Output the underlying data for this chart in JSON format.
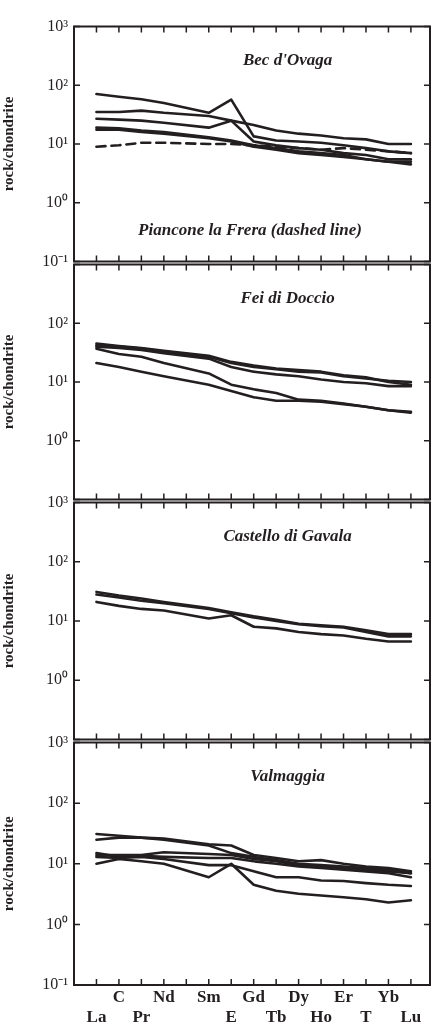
{
  "chart_data": [
    {
      "type": "line",
      "title": "Bec d'Ovaga",
      "ylabel": "rock/chondrite",
      "annotations": [
        "Piancone la Frera (dashed line)"
      ],
      "log": true,
      "tick_labels": "y",
      "ylim": [
        0.1,
        1000
      ],
      "yticks": [
        {
          "value": 0.1,
          "label": "10⁻¹"
        },
        {
          "value": 1,
          "label": "10⁰"
        },
        {
          "value": 10,
          "label": "10¹"
        },
        {
          "value": 100,
          "label": "10²"
        },
        {
          "value": 1000,
          "label": "10³"
        }
      ],
      "categories": [
        null,
        null,
        null,
        null,
        null,
        null,
        null,
        null,
        null,
        null,
        null,
        null,
        null,
        null,
        null
      ],
      "series": [
        {
          "color": "#231f20",
          "values": [
            71,
            64,
            58,
            50,
            null,
            34,
            57,
            13.5,
            11.5,
            11,
            10.5,
            9.5,
            8.5,
            7.5,
            7
          ]
        },
        {
          "color": "#231f20",
          "values": [
            35,
            35,
            37,
            34,
            null,
            30,
            25,
            21,
            17,
            15,
            14,
            12.5,
            12,
            10,
            10
          ]
        },
        {
          "color": "#231f20",
          "values": [
            27,
            26,
            25,
            23,
            null,
            19,
            25,
            11,
            9.5,
            8.5,
            8,
            7,
            6.5,
            5.5,
            5.5
          ]
        },
        {
          "color": "#231f20",
          "values": [
            19,
            18.5,
            17,
            16,
            null,
            13,
            11.5,
            9.5,
            8.5,
            7.5,
            7,
            6.5,
            5.5,
            5,
            4.5
          ]
        },
        {
          "color": "#231f20",
          "values": [
            17.5,
            17.5,
            16,
            15,
            null,
            12.5,
            11,
            9,
            8,
            7,
            6.5,
            6,
            5.5,
            5,
            5
          ]
        },
        {
          "color": "#231f20",
          "line_style": "dashed",
          "values": [
            9,
            9.5,
            10.5,
            10.5,
            null,
            10,
            10,
            9.5,
            9,
            8.5,
            8,
            8.5,
            8,
            7.5,
            7
          ]
        }
      ]
    },
    {
      "type": "line",
      "title": "Fei di Doccio",
      "ylabel": "rock/chondrite",
      "log": true,
      "tick_labels": "y",
      "ylim": [
        0.1,
        1000
      ],
      "yticks": [
        {
          "value": 0.1,
          "label": null
        },
        {
          "value": 1,
          "label": "10⁰"
        },
        {
          "value": 10,
          "label": "10¹"
        },
        {
          "value": 100,
          "label": "10²"
        },
        {
          "value": 1000,
          "label": null
        }
      ],
      "categories": [
        null,
        null,
        null,
        null,
        null,
        null,
        null,
        null,
        null,
        null,
        null,
        null,
        null,
        null,
        null
      ],
      "series": [
        {
          "color": "#231f20",
          "values": [
            42,
            40,
            37,
            33,
            null,
            27,
            21,
            18,
            16.5,
            15,
            14.5,
            12.5,
            11.5,
            10.5,
            10
          ]
        },
        {
          "color": "#231f20",
          "values": [
            40,
            38,
            35,
            31,
            null,
            25,
            18,
            15,
            13.5,
            12.5,
            11,
            10,
            9.5,
            8.5,
            8.5
          ]
        },
        {
          "color": "#231f20",
          "values": [
            45,
            41,
            38,
            34,
            null,
            28,
            22,
            19,
            17,
            16,
            15,
            13,
            12,
            10,
            9
          ]
        },
        {
          "color": "#231f20",
          "values": [
            37,
            30,
            27,
            21,
            null,
            14,
            9,
            7.5,
            6.5,
            5,
            4.8,
            4.3,
            3.8,
            3.3,
            3
          ]
        },
        {
          "color": "#231f20",
          "values": [
            21,
            18,
            15,
            12.5,
            null,
            9,
            7,
            5.5,
            4.8,
            4.8,
            4.6,
            4.2,
            3.8,
            3.3,
            3.1
          ]
        }
      ]
    },
    {
      "type": "line",
      "title": "Castello di Gavala",
      "ylabel": "rock/chondrite",
      "log": true,
      "tick_labels": "y",
      "ylim": [
        0.1,
        1000
      ],
      "yticks": [
        {
          "value": 0.1,
          "label": null
        },
        {
          "value": 1,
          "label": "10⁰"
        },
        {
          "value": 10,
          "label": "10¹"
        },
        {
          "value": 100,
          "label": "10²"
        },
        {
          "value": 1000,
          "label": "10³"
        }
      ],
      "categories": [
        null,
        null,
        null,
        null,
        null,
        null,
        null,
        null,
        null,
        null,
        null,
        null,
        null,
        null,
        null
      ],
      "series": [
        {
          "color": "#231f20",
          "values": [
            31,
            27,
            24,
            21,
            null,
            16.5,
            14,
            12,
            10.5,
            9,
            8.5,
            8,
            7,
            6,
            6
          ]
        },
        {
          "color": "#231f20",
          "values": [
            28,
            25,
            22,
            20,
            null,
            16,
            13.5,
            11.5,
            10,
            8.8,
            8.2,
            7.8,
            6.5,
            5.5,
            5.5
          ]
        },
        {
          "color": "#231f20",
          "values": [
            21,
            18,
            16,
            15,
            null,
            11,
            12.5,
            8,
            7.5,
            6.5,
            6,
            5.7,
            5,
            4.5,
            4.5
          ]
        }
      ]
    },
    {
      "type": "line",
      "title": "Valmaggia",
      "ylabel": "rock/chondrite",
      "log": true,
      "ylim": [
        0.1,
        1000
      ],
      "yticks": [
        {
          "value": 0.1,
          "label": "10⁻¹"
        },
        {
          "value": 1,
          "label": "10⁰"
        },
        {
          "value": 10,
          "label": "10¹"
        },
        {
          "value": 100,
          "label": "10²"
        },
        {
          "value": 1000,
          "label": "10³"
        }
      ],
      "categories": [
        "La",
        "C",
        "Pr",
        "Nd",
        null,
        "Sm",
        "E",
        "Gd",
        "Tb",
        "Dy",
        "Ho",
        "Er",
        "T",
        "Yb",
        "Lu"
      ],
      "series": [
        {
          "color": "#231f20",
          "values": [
            31,
            29,
            27,
            26,
            null,
            21,
            20,
            14,
            12.5,
            11,
            11.5,
            10,
            9,
            8.5,
            7.5
          ]
        },
        {
          "color": "#231f20",
          "values": [
            25,
            27,
            27,
            25,
            null,
            20,
            15,
            13,
            11.5,
            10,
            9.5,
            9,
            8.5,
            8,
            7
          ]
        },
        {
          "color": "#231f20",
          "values": [
            14,
            14,
            14,
            15.5,
            null,
            14.5,
            14,
            12,
            11,
            9.5,
            9,
            8.5,
            8,
            7.5,
            7
          ]
        },
        {
          "color": "#231f20",
          "values": [
            13,
            12.5,
            13,
            12,
            null,
            9.5,
            9.5,
            7.5,
            6,
            6,
            5.3,
            5.2,
            4.8,
            4.5,
            4.3
          ]
        },
        {
          "color": "#231f20",
          "values": [
            10,
            12,
            11,
            10,
            null,
            6,
            10,
            4.5,
            3.6,
            3.2,
            3,
            2.8,
            2.6,
            2.3,
            2.5
          ]
        },
        {
          "color": "#231f20",
          "values": [
            15,
            13,
            13.5,
            13,
            null,
            12.5,
            12.5,
            11,
            10,
            9,
            8.5,
            8,
            7.5,
            7,
            6
          ]
        }
      ]
    }
  ]
}
